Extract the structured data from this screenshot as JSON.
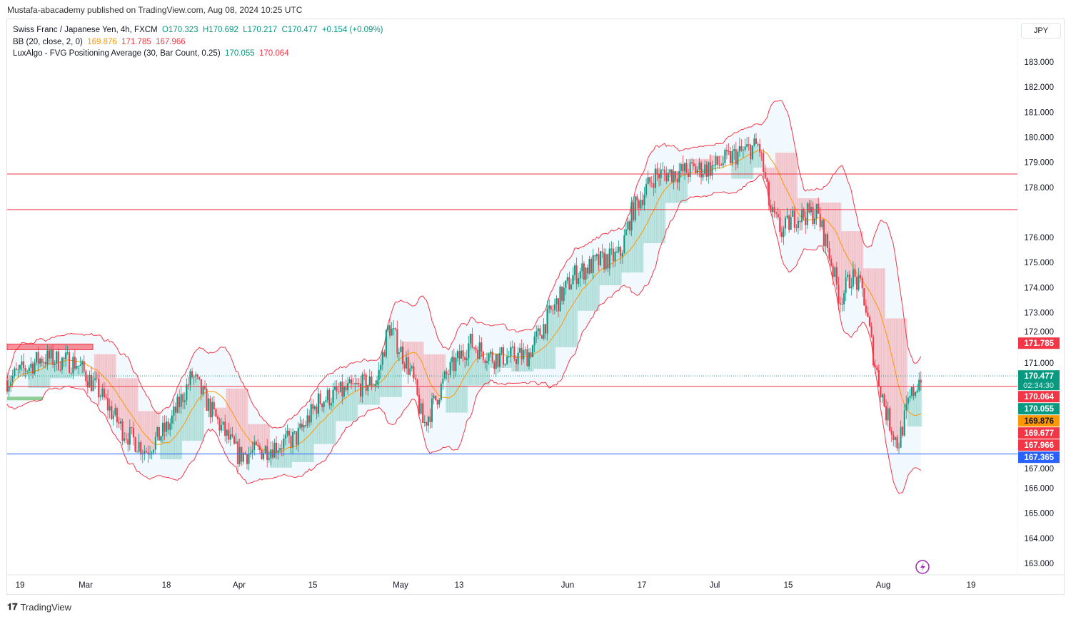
{
  "publisher": "Mustafa-abacademy published on TradingView.com, Aug 08, 2024 10:25 UTC",
  "legend": {
    "symbol": "Swiss Franc / Japanese Yen, 4h, FXCM",
    "o": "O170.323",
    "h": "H170.692",
    "l": "L170.217",
    "c": "C170.477",
    "chg": "+0.154 (+0.09%)",
    "bb_label": "BB (20, close, 2, 0)",
    "bb_basis": "169.876",
    "bb_upper": "171.785",
    "bb_lower": "167.966",
    "fvg_label": "LuxAlgo - FVG Positioning Average (30, Bar Count, 0.25)",
    "fvg_bull": "170.055",
    "fvg_bear": "170.064"
  },
  "currency": "JPY",
  "footer": "TradingView",
  "colors": {
    "up": "#089981",
    "down": "#f23645",
    "basis": "#ff9800",
    "level": "#f23645",
    "support": "#2962ff"
  },
  "chart_data": {
    "type": "line",
    "title": "CHFJPY 4h",
    "ylim": [
      162.6,
      183.6
    ],
    "y_ticks": [
      "183.000",
      "182.000",
      "181.000",
      "180.000",
      "179.000",
      "178.000",
      "176.000",
      "175.000",
      "174.000",
      "173.000",
      "172.000",
      "171.000",
      "167.000",
      "166.000",
      "165.000",
      "164.000",
      "163.000"
    ],
    "x_ticks": [
      "19",
      "Mar",
      "18",
      "Apr",
      "15",
      "May",
      "13",
      "Jun",
      "17",
      "Jul",
      "15",
      "Aug",
      "19"
    ],
    "close_path": [
      [
        0,
        170.3
      ],
      [
        3,
        171.2
      ],
      [
        6,
        171
      ],
      [
        8,
        169.8
      ],
      [
        10,
        168.3
      ],
      [
        12,
        167.5
      ],
      [
        14,
        168.5
      ],
      [
        16,
        170.5
      ],
      [
        18,
        168.8
      ],
      [
        20,
        167.3
      ],
      [
        22,
        167.5
      ],
      [
        25,
        168
      ],
      [
        27,
        169.5
      ],
      [
        30,
        170
      ],
      [
        32,
        170.3
      ],
      [
        33,
        172.5
      ],
      [
        35,
        170.5
      ],
      [
        36,
        168.5
      ],
      [
        38,
        170.5
      ],
      [
        40,
        171.8
      ],
      [
        42,
        171.2
      ],
      [
        45,
        171.3
      ],
      [
        47,
        173
      ],
      [
        49,
        174.5
      ],
      [
        51,
        175
      ],
      [
        53,
        175.3
      ],
      [
        54,
        177
      ],
      [
        56,
        178.5
      ],
      [
        58,
        178.6
      ],
      [
        61,
        178.8
      ],
      [
        63,
        179.3
      ],
      [
        65,
        179.7
      ],
      [
        66,
        177
      ],
      [
        67,
        176.2
      ],
      [
        68,
        176.8
      ],
      [
        70,
        177
      ],
      [
        71,
        175.5
      ],
      [
        72,
        173.5
      ],
      [
        73,
        174.5
      ],
      [
        74,
        173.8
      ],
      [
        75,
        171
      ],
      [
        76,
        169
      ],
      [
        77,
        167.7
      ],
      [
        78,
        169.5
      ],
      [
        79,
        170.5
      ]
    ],
    "levels": [
      {
        "label": "178.533",
        "value": 178.533,
        "color": "#f23645"
      },
      {
        "label": "177.113",
        "value": 177.113,
        "color": "#f23645"
      },
      {
        "label": "170.064",
        "value": 170.064,
        "color": "#f23645"
      },
      {
        "label": "167.365",
        "value": 167.365,
        "color": "#2962ff"
      }
    ],
    "price_tags": [
      {
        "label": "171.785",
        "value": 171.785,
        "color": "#f23645"
      },
      {
        "label": "170.477",
        "sub": "02:34:30",
        "value": 170.477,
        "color": "#089981"
      },
      {
        "label": "170.064",
        "value": 170.064,
        "color": "#f23645"
      },
      {
        "label": "170.055",
        "value": 170.055,
        "color": "#089981"
      },
      {
        "label": "169.876",
        "value": 169.876,
        "color": "#ff9800"
      },
      {
        "label": "169.677",
        "value": 169.677,
        "color": "#f23645"
      },
      {
        "label": "167.966",
        "value": 167.966,
        "color": "#f23645"
      },
      {
        "label": "167.365",
        "value": 167.365,
        "color": "#2962ff"
      }
    ]
  }
}
